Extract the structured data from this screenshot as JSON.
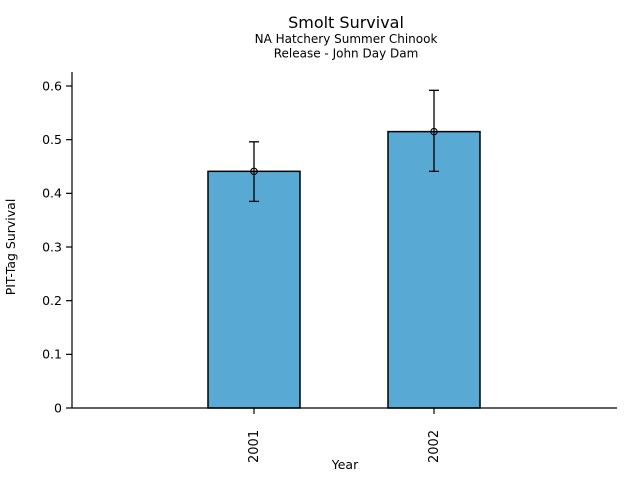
{
  "chart_data": {
    "type": "bar",
    "title": "Smolt Survival",
    "subtitle_line1": "NA Hatchery Summer Chinook",
    "subtitle_line2": "Release - John Day Dam",
    "xlabel": "Year",
    "ylabel": "PIT-Tag Survival",
    "categories": [
      "2001",
      "2002"
    ],
    "values": [
      0.441,
      0.515
    ],
    "error_low": [
      0.385,
      0.441
    ],
    "error_high": [
      0.496,
      0.592
    ],
    "ylim": [
      0,
      0.6
    ],
    "yticks": [
      0,
      0.1,
      0.2,
      0.3,
      0.4,
      0.5,
      0.6
    ],
    "ytick_labels": [
      "0",
      "0.1",
      "0.2",
      "0.3",
      "0.4",
      "0.5",
      "0.6"
    ],
    "xtick_rotation_deg": -90,
    "grid": false,
    "legend_position": "none",
    "marker": "open-circle",
    "colors": {
      "bar_fill": "#58A9D4",
      "bar_edge": "#000000",
      "error_bar": "#000000",
      "axis": "#000000",
      "background": "#FFFFFF",
      "text": "#000000"
    }
  }
}
